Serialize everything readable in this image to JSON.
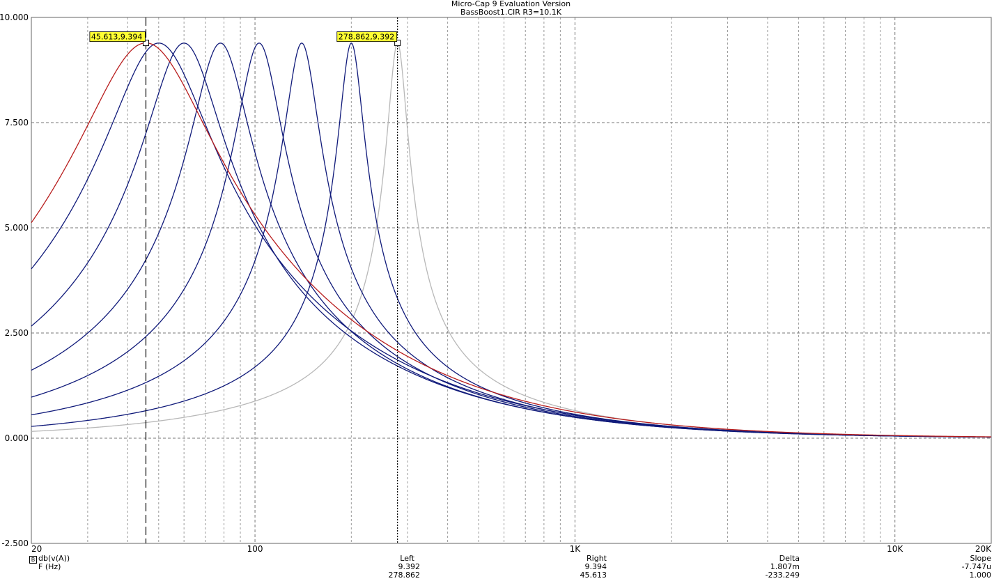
{
  "header": {
    "title": "Micro-Cap 9 Evaluation Version",
    "subtitle": "BassBoost1.CIR R3=10.1K"
  },
  "chart_data": {
    "type": "line",
    "x_scale": "log",
    "xlim": [
      20,
      20000
    ],
    "ylim": [
      -2.5,
      10.0
    ],
    "grid": true,
    "y_ticks": [
      "10.000",
      "7.500",
      "5.000",
      "2.500",
      "0.000",
      "-2.500"
    ],
    "y_tick_values": [
      10,
      7.5,
      5,
      2.5,
      0,
      -2.5
    ],
    "x_ticks": [
      "20",
      "100",
      "1K",
      "10K",
      "20K"
    ],
    "x_tick_values": [
      20,
      100,
      1000,
      10000,
      20000
    ],
    "series": [
      {
        "color": "#b81d1d",
        "peak_x": 45.613,
        "peak_y": 9.394,
        "q": 1.2
      },
      {
        "color": "#101a7a",
        "peak_x": 50,
        "peak_y": 9.39,
        "q": 1.5
      },
      {
        "color": "#101a7a",
        "peak_x": 60,
        "peak_y": 9.39,
        "q": 2.0
      },
      {
        "color": "#101a7a",
        "peak_x": 78,
        "peak_y": 9.39,
        "q": 2.6
      },
      {
        "color": "#101a7a",
        "peak_x": 103,
        "peak_y": 9.39,
        "q": 3.3
      },
      {
        "color": "#101a7a",
        "peak_x": 140,
        "peak_y": 9.39,
        "q": 4.3
      },
      {
        "color": "#101a7a",
        "peak_x": 200,
        "peak_y": 9.39,
        "q": 6.0
      },
      {
        "color": "#b8b8b8",
        "peak_x": 278.862,
        "peak_y": 9.392,
        "q": 7.5
      }
    ],
    "cursors": [
      {
        "x": 45.613,
        "style": "dashed",
        "label": "45.613,9.394"
      },
      {
        "x": 278.862,
        "style": "dotted",
        "label": "278.862,9.392"
      }
    ]
  },
  "readout": {
    "y_expr": "db(v(A))",
    "x_expr": "F (Hz)",
    "left_header": "Left",
    "left_y": "9.392",
    "left_x": "278.862",
    "right_header": "Right",
    "right_y": "9.394",
    "right_x": "45.613",
    "delta_header": "Delta",
    "delta_y": "1.807m",
    "delta_x": "-233.249",
    "slope_header": "Slope",
    "slope_y": "-7.747u",
    "slope_x": "1.000"
  }
}
